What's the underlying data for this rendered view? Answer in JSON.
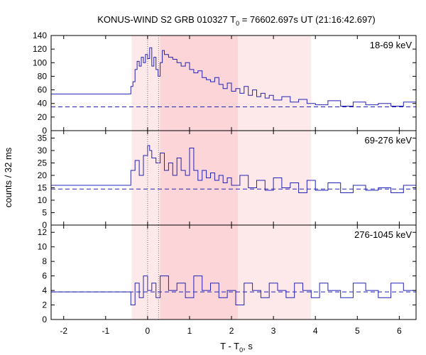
{
  "chart_data": {
    "type": "line",
    "title": "KONUS-WIND S2 GRB 010327 T",
    "title_sub": "0",
    "title_rest": " = 76602.697s UT (21:16:42.697)",
    "xlabel": "T - T",
    "xlabel_sub": "0",
    "xlabel_rest": ", s",
    "ylabel": "counts / 32 ms",
    "xlim": [
      -2.3,
      6.4
    ],
    "xticks": [
      -2,
      -1,
      0,
      1,
      2,
      3,
      4,
      5,
      6
    ],
    "vlines": [
      0.0,
      0.26
    ],
    "shaded": [
      {
        "from": -0.38,
        "to": 3.9,
        "color": "#fde9ea"
      },
      {
        "from": 0.3,
        "to": 2.15,
        "color": "#fbd5d8"
      }
    ],
    "line_color": "#2323b5",
    "panels": [
      {
        "label": "18-69 keV",
        "ylim": [
          0,
          140
        ],
        "yticks": [
          0,
          20,
          40,
          60,
          80,
          100,
          120,
          140
        ],
        "background": 35,
        "pre_level": 54,
        "curve": [
          [
            -0.45,
            54
          ],
          [
            -0.4,
            65
          ],
          [
            -0.35,
            72
          ],
          [
            -0.3,
            90
          ],
          [
            -0.25,
            102
          ],
          [
            -0.2,
            95
          ],
          [
            -0.15,
            108
          ],
          [
            -0.1,
            100
          ],
          [
            -0.05,
            112
          ],
          [
            0.0,
            106
          ],
          [
            0.05,
            122
          ],
          [
            0.1,
            95
          ],
          [
            0.15,
            108
          ],
          [
            0.2,
            90
          ],
          [
            0.25,
            80
          ],
          [
            0.3,
            100
          ],
          [
            0.35,
            118
          ],
          [
            0.4,
            112
          ],
          [
            0.5,
            108
          ],
          [
            0.6,
            105
          ],
          [
            0.7,
            100
          ],
          [
            0.8,
            95
          ],
          [
            0.9,
            100
          ],
          [
            1.0,
            90
          ],
          [
            1.1,
            85
          ],
          [
            1.2,
            88
          ],
          [
            1.3,
            78
          ],
          [
            1.4,
            75
          ],
          [
            1.5,
            72
          ],
          [
            1.6,
            78
          ],
          [
            1.7,
            68
          ],
          [
            1.8,
            62
          ],
          [
            1.9,
            70
          ],
          [
            2.0,
            58
          ],
          [
            2.1,
            62
          ],
          [
            2.2,
            55
          ],
          [
            2.3,
            65
          ],
          [
            2.4,
            52
          ],
          [
            2.5,
            60
          ],
          [
            2.6,
            50
          ],
          [
            2.7,
            55
          ],
          [
            2.8,
            48
          ],
          [
            2.9,
            52
          ],
          [
            3.0,
            45
          ],
          [
            3.2,
            50
          ],
          [
            3.4,
            42
          ],
          [
            3.6,
            46
          ],
          [
            3.8,
            40
          ],
          [
            4.0,
            38
          ],
          [
            4.3,
            44
          ],
          [
            4.6,
            36
          ],
          [
            4.9,
            42
          ],
          [
            5.2,
            38
          ],
          [
            5.5,
            40
          ],
          [
            5.8,
            36
          ],
          [
            6.1,
            42
          ],
          [
            6.4,
            40
          ]
        ]
      },
      {
        "label": "69-276 keV",
        "ylim": [
          0,
          38
        ],
        "yticks": [
          0,
          5,
          10,
          15,
          20,
          25,
          30,
          35
        ],
        "background": 14.5,
        "pre_level": 16,
        "curve": [
          [
            -0.45,
            16
          ],
          [
            -0.4,
            22
          ],
          [
            -0.3,
            26
          ],
          [
            -0.2,
            20
          ],
          [
            -0.1,
            28
          ],
          [
            0.0,
            32
          ],
          [
            0.05,
            30
          ],
          [
            0.1,
            27
          ],
          [
            0.2,
            25
          ],
          [
            0.3,
            29
          ],
          [
            0.4,
            22
          ],
          [
            0.5,
            25
          ],
          [
            0.6,
            20
          ],
          [
            0.7,
            27
          ],
          [
            0.8,
            22
          ],
          [
            0.9,
            20
          ],
          [
            1.0,
            31
          ],
          [
            1.1,
            22
          ],
          [
            1.2,
            18
          ],
          [
            1.3,
            22
          ],
          [
            1.4,
            19
          ],
          [
            1.5,
            21
          ],
          [
            1.6,
            18
          ],
          [
            1.7,
            20
          ],
          [
            1.8,
            17
          ],
          [
            1.9,
            19
          ],
          [
            2.0,
            16
          ],
          [
            2.2,
            20
          ],
          [
            2.4,
            15
          ],
          [
            2.6,
            18
          ],
          [
            2.8,
            14
          ],
          [
            3.0,
            19
          ],
          [
            3.2,
            15
          ],
          [
            3.4,
            17
          ],
          [
            3.6,
            13
          ],
          [
            3.8,
            18
          ],
          [
            4.0,
            14
          ],
          [
            4.3,
            17
          ],
          [
            4.6,
            13
          ],
          [
            4.9,
            16
          ],
          [
            5.2,
            14
          ],
          [
            5.5,
            15
          ],
          [
            5.8,
            13
          ],
          [
            6.1,
            16
          ],
          [
            6.4,
            14
          ]
        ]
      },
      {
        "label": "276-1045 keV",
        "ylim": [
          0,
          13
        ],
        "yticks": [
          0,
          2,
          4,
          6,
          8,
          10,
          12
        ],
        "background": 3.8,
        "pre_level": 3.8,
        "curve": [
          [
            -0.45,
            3.8
          ],
          [
            -0.4,
            2
          ],
          [
            -0.3,
            5
          ],
          [
            -0.2,
            3
          ],
          [
            -0.1,
            6
          ],
          [
            0.0,
            4
          ],
          [
            0.1,
            5
          ],
          [
            0.2,
            3
          ],
          [
            0.3,
            6
          ],
          [
            0.5,
            4
          ],
          [
            0.7,
            5
          ],
          [
            0.9,
            3
          ],
          [
            1.1,
            6
          ],
          [
            1.3,
            4
          ],
          [
            1.5,
            5
          ],
          [
            1.7,
            3
          ],
          [
            1.9,
            4
          ],
          [
            2.1,
            2
          ],
          [
            2.3,
            5
          ],
          [
            2.5,
            4
          ],
          [
            2.7,
            3
          ],
          [
            2.9,
            5
          ],
          [
            3.1,
            4
          ],
          [
            3.3,
            3
          ],
          [
            3.5,
            5
          ],
          [
            3.7,
            4
          ],
          [
            3.9,
            3
          ],
          [
            4.1,
            5
          ],
          [
            4.3,
            4
          ],
          [
            4.6,
            3
          ],
          [
            4.9,
            5
          ],
          [
            5.2,
            4
          ],
          [
            5.5,
            3
          ],
          [
            5.8,
            5
          ],
          [
            6.1,
            4
          ],
          [
            6.4,
            3.5
          ]
        ]
      }
    ]
  }
}
